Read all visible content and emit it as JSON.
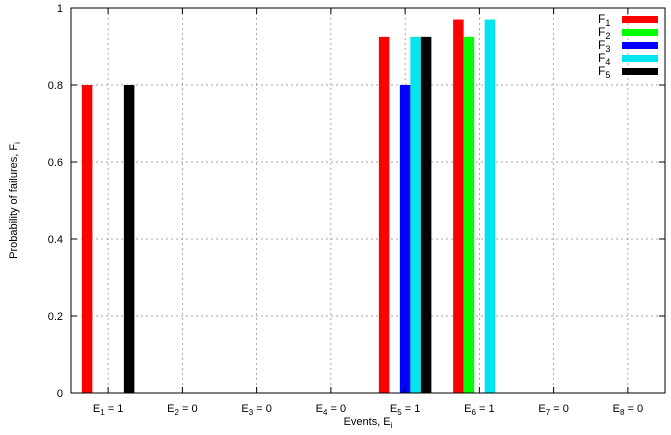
{
  "chart_data": {
    "type": "bar",
    "title": "",
    "xlabel": {
      "main": "Events, E",
      "sub": "i"
    },
    "ylabel": {
      "main": "Probability of failures, F",
      "sub": "i"
    },
    "ylim": [
      0,
      1
    ],
    "yticks": [
      "0",
      "0.2",
      "0.4",
      "0.6",
      "0.8",
      "1"
    ],
    "grid": true,
    "legend_position": "top-right",
    "categories": [
      {
        "main": "E",
        "sub": "1",
        "suffix": " = 1"
      },
      {
        "main": "E",
        "sub": "2",
        "suffix": " = 0"
      },
      {
        "main": "E",
        "sub": "3",
        "suffix": " = 0"
      },
      {
        "main": "E",
        "sub": "4",
        "suffix": " = 0"
      },
      {
        "main": "E",
        "sub": "5",
        "suffix": " = 1"
      },
      {
        "main": "E",
        "sub": "6",
        "suffix": " = 1"
      },
      {
        "main": "E",
        "sub": "7",
        "suffix": " = 0"
      },
      {
        "main": "E",
        "sub": "8",
        "suffix": " = 0"
      }
    ],
    "series": [
      {
        "name": "F",
        "sub": "1",
        "color": "#ff0000",
        "values": [
          0.8,
          0,
          0,
          0,
          0.925,
          0.97,
          0,
          0
        ]
      },
      {
        "name": "F",
        "sub": "2",
        "color": "#00ff00",
        "values": [
          0,
          0,
          0,
          0,
          0,
          0.925,
          0,
          0
        ]
      },
      {
        "name": "F",
        "sub": "3",
        "color": "#0000ff",
        "values": [
          0,
          0,
          0,
          0,
          0.8,
          0,
          0,
          0
        ]
      },
      {
        "name": "F",
        "sub": "4",
        "color": "#00e5ee",
        "values": [
          0,
          0,
          0,
          0,
          0.925,
          0.97,
          0,
          0
        ]
      },
      {
        "name": "F",
        "sub": "5",
        "color": "#000000",
        "values": [
          0.8,
          0,
          0,
          0,
          0.925,
          0,
          0,
          0
        ]
      }
    ]
  }
}
